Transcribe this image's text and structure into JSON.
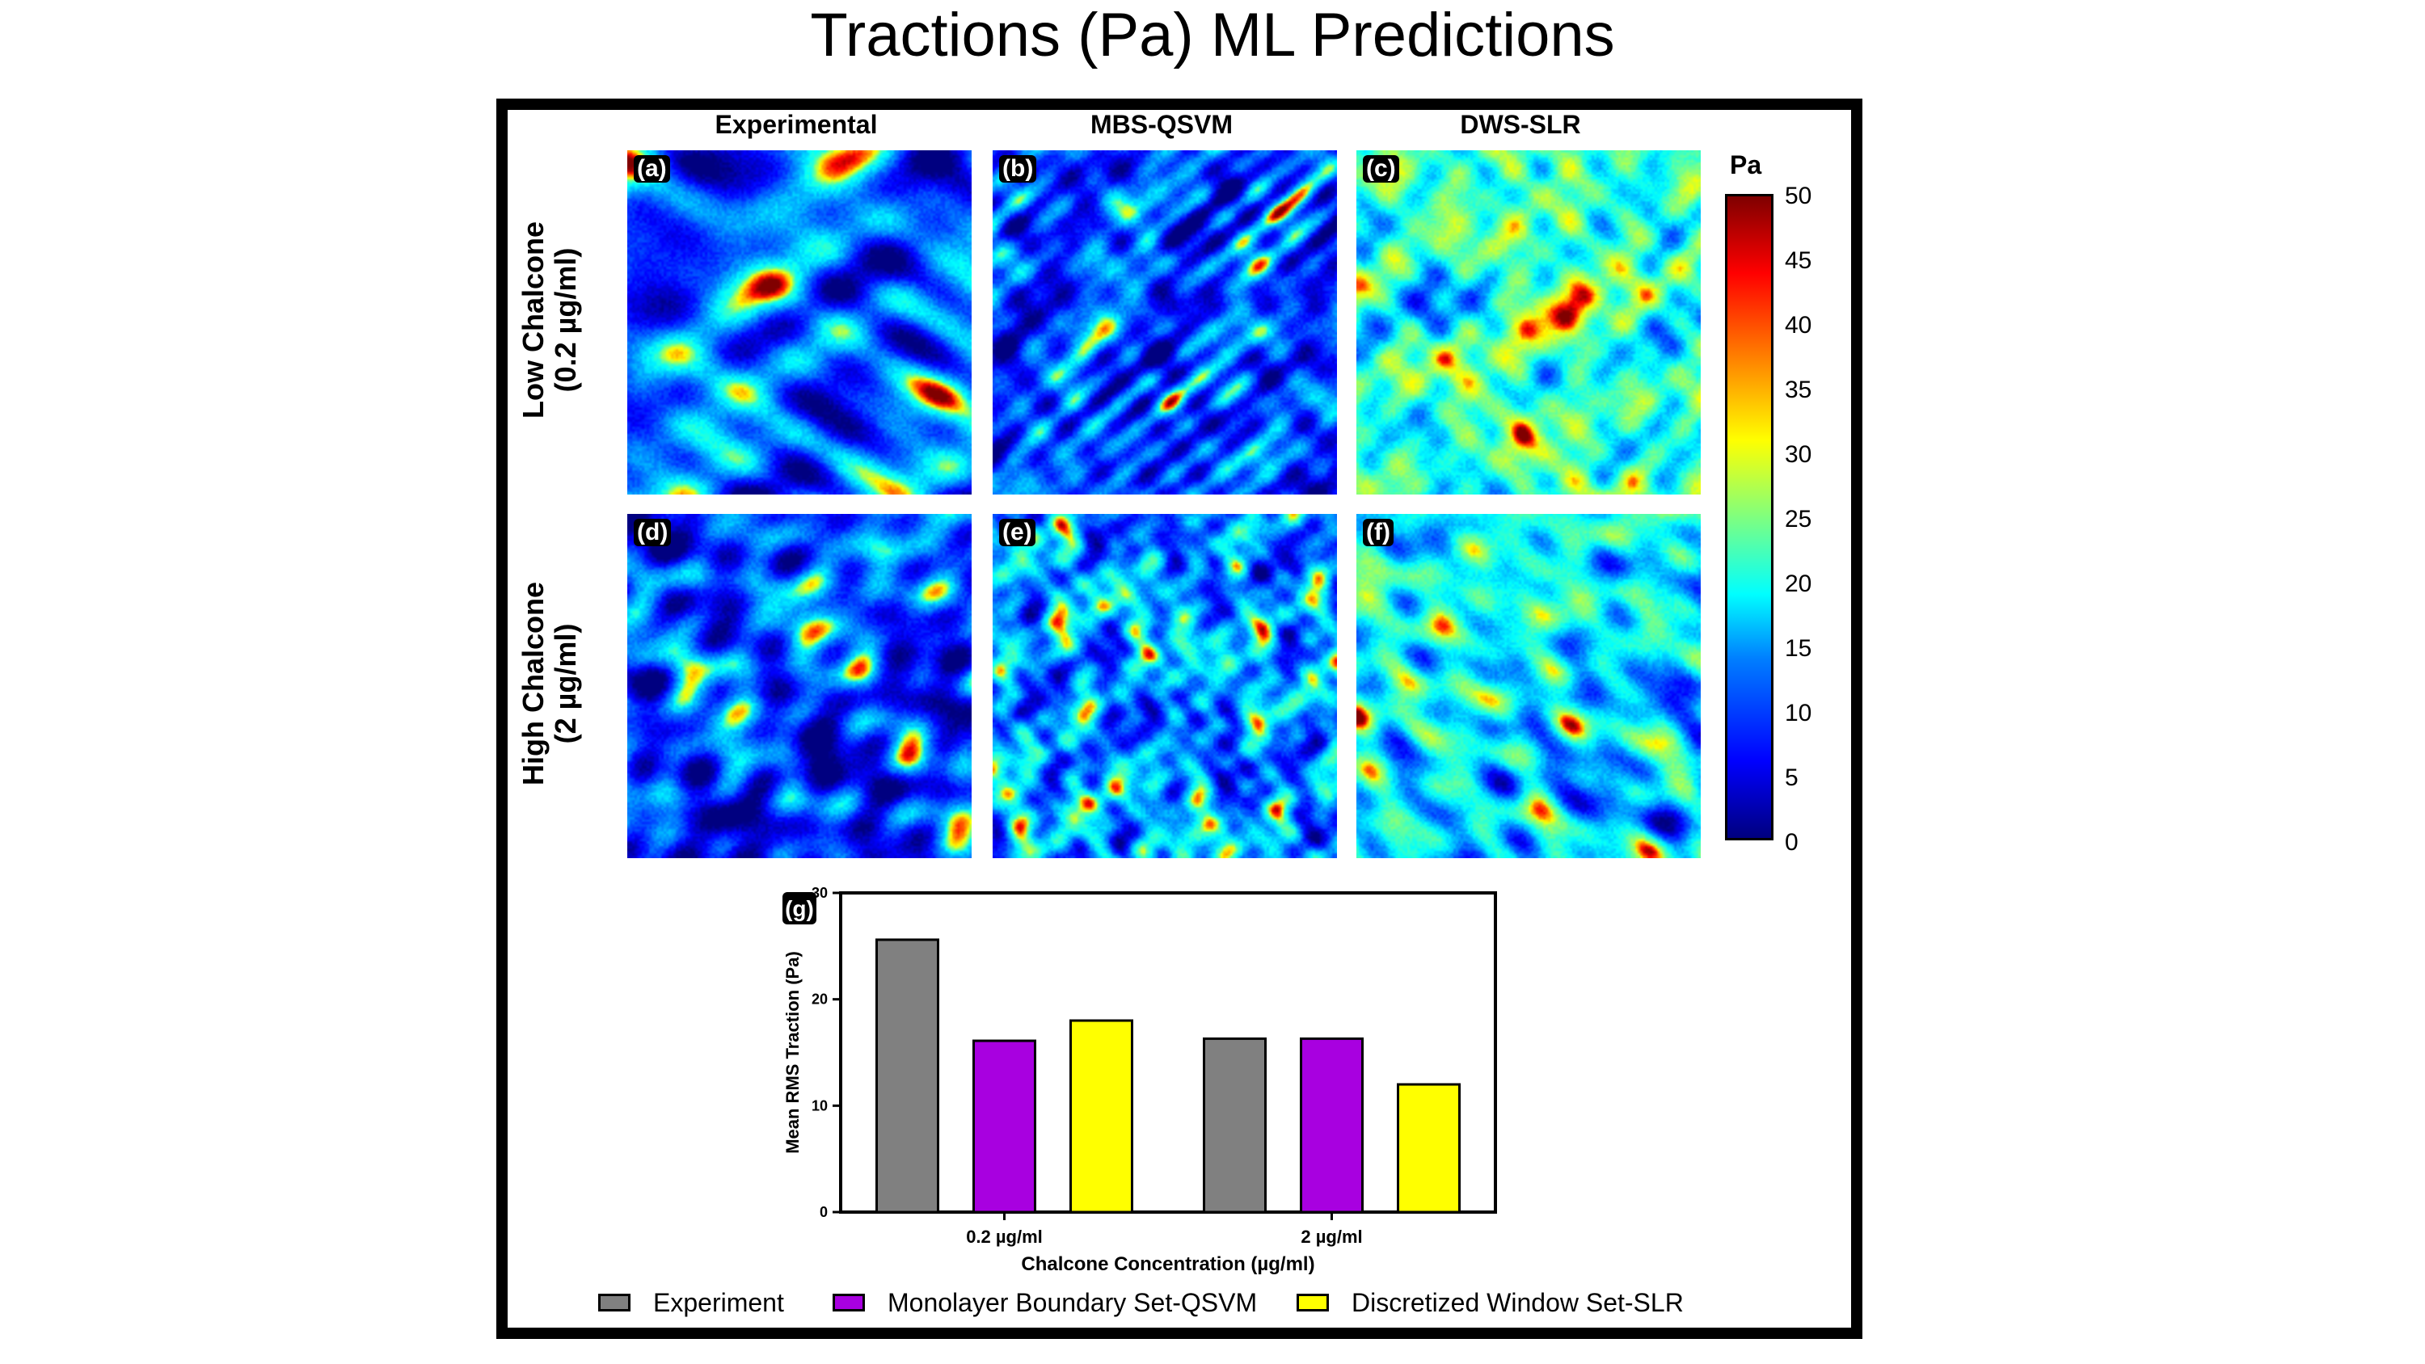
{
  "title": "Tractions (Pa) ML Predictions",
  "columns": [
    "Experimental",
    "MBS-QSVM",
    "DWS-SLR"
  ],
  "rows": [
    {
      "line1": "Low Chalcone",
      "line2": "(0.2 µg/ml)"
    },
    {
      "line1": "High Chalcone",
      "line2": "(2 µg/ml)"
    }
  ],
  "panel_labels": [
    "(a)",
    "(b)",
    "(c)",
    "(d)",
    "(e)",
    "(f)"
  ],
  "panel_mean_levels_pa": [
    12,
    10,
    22,
    9,
    14,
    18
  ],
  "colorbar": {
    "unit": "Pa",
    "ticks": [
      "50",
      "45",
      "40",
      "35",
      "30",
      "25",
      "20",
      "15",
      "10",
      "5",
      "0"
    ],
    "range": [
      0,
      50
    ],
    "colormap": "jet"
  },
  "chart_data": {
    "type": "bar",
    "panel_label": "(g)",
    "categories": [
      "0.2 µg/ml",
      "2 µg/ml"
    ],
    "series": [
      {
        "name": "Experiment",
        "color": "#808080",
        "values": [
          25.6,
          16.3
        ]
      },
      {
        "name": "Monolayer Boundary Set-QSVM",
        "color": "#a800e0",
        "values": [
          16.1,
          16.3
        ]
      },
      {
        "name": "Discretized Window Set-SLR",
        "color": "#ffff00",
        "values": [
          18.0,
          12.0
        ]
      }
    ],
    "xlabel": "Chalcone Concentration (µg/ml)",
    "ylabel": "Mean RMS Traction (Pa)",
    "ylim": [
      0,
      30
    ],
    "yticks": [
      "0",
      "10",
      "20",
      "30"
    ],
    "legend_position": "bottom"
  }
}
